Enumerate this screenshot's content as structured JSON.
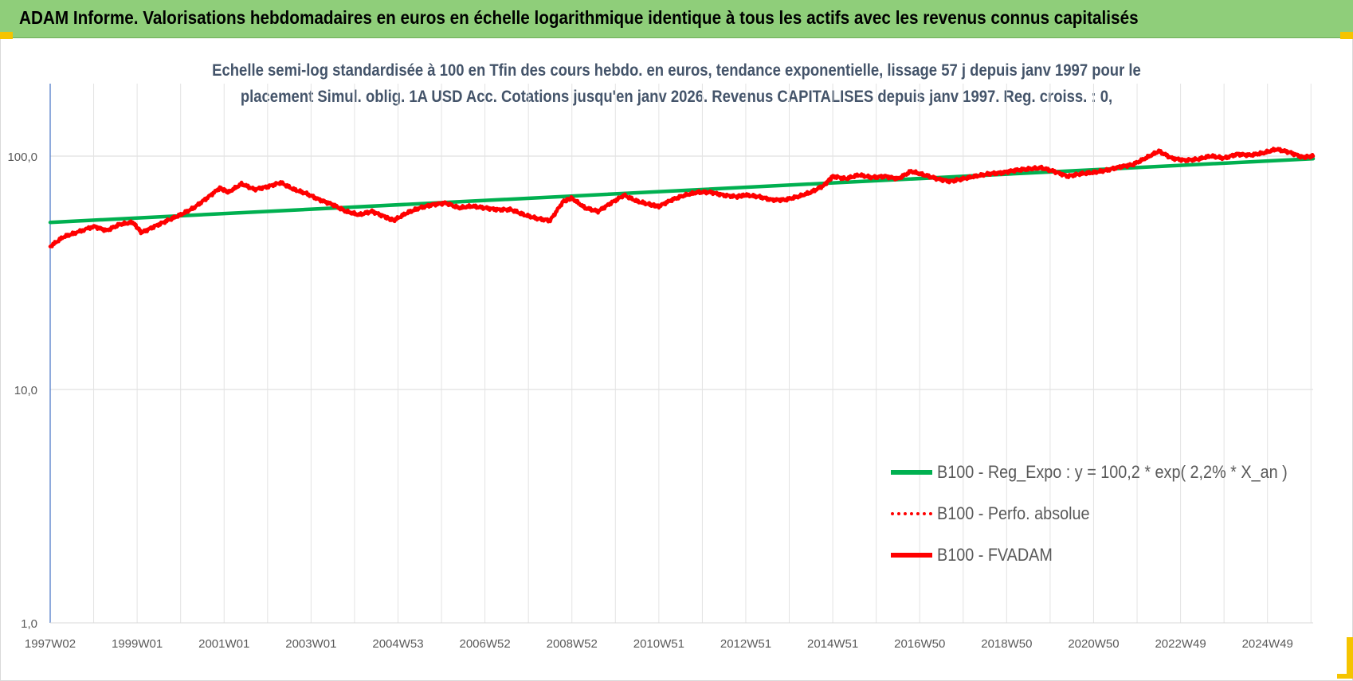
{
  "header": {
    "title": "ADAM Informe. Valorisations hebdomadaires en euros en échelle logarithmique identique à tous les actifs avec les revenus connus capitalisés"
  },
  "colors": {
    "header_bg": "#8fce7a",
    "corner_accent": "#f5c400",
    "trend_green": "#00b050",
    "series_red": "#ff0000",
    "subtitle": "#44546a"
  },
  "chart_data": {
    "type": "line",
    "scale": "log",
    "subtitle": [
      "Echelle semi-log standardisée à 100 en Tfin des cours hebdo. en euros, tendance exponentielle, lissage 57 j depuis janv 1997 pour le",
      "placement Simul. oblig. 1A USD Acc. Cotations jusqu'en janv 2026. Revenus CAPITALISES depuis janv 1997. Reg. croiss. : 0,"
    ],
    "ylim": [
      1,
      200
    ],
    "xlim": [
      1997.0,
      2026.05
    ],
    "y_ticks": [
      {
        "value": 1,
        "label": "1,0"
      },
      {
        "value": 10,
        "label": "10,0"
      },
      {
        "value": 100,
        "label": "100,0"
      }
    ],
    "x_ticks": [
      {
        "value": 1997.0,
        "label": "1997W02"
      },
      {
        "value": 1999.0,
        "label": "1999W01"
      },
      {
        "value": 2001.0,
        "label": "2001W01"
      },
      {
        "value": 2003.0,
        "label": "2003W01"
      },
      {
        "value": 2005.0,
        "label": "2004W53"
      },
      {
        "value": 2007.0,
        "label": "2006W52"
      },
      {
        "value": 2009.0,
        "label": "2008W52"
      },
      {
        "value": 2011.0,
        "label": "2010W51"
      },
      {
        "value": 2013.0,
        "label": "2012W51"
      },
      {
        "value": 2015.0,
        "label": "2014W51"
      },
      {
        "value": 2017.0,
        "label": "2016W50"
      },
      {
        "value": 2019.0,
        "label": "2018W50"
      },
      {
        "value": 2021.0,
        "label": "2020W50"
      },
      {
        "value": 2023.0,
        "label": "2022W49"
      },
      {
        "value": 2025.0,
        "label": "2024W49"
      }
    ],
    "grid": true,
    "legend_position": "bottom-right",
    "series": [
      {
        "name": "B100 - Reg_Expo : y = 100,2 * exp( 2,2% *  X_an )",
        "style": "solid-thick",
        "color": "#00b050",
        "x": [
          1997.0,
          2026.05
        ],
        "y": [
          52.0,
          97.5
        ]
      },
      {
        "name": "B100 - Perfo. absolue",
        "style": "dotted",
        "color": "#ff0000",
        "x": [],
        "y": []
      },
      {
        "name": "B100 - FVADAM",
        "style": "solid-thick",
        "color": "#ff0000",
        "x": [
          1997.0,
          1997.3,
          1997.6,
          1998.0,
          1998.3,
          1998.6,
          1998.9,
          1999.1,
          1999.4,
          1999.7,
          2000.0,
          2000.3,
          2000.6,
          2000.9,
          2001.1,
          2001.4,
          2001.7,
          2002.0,
          2002.3,
          2002.6,
          2002.9,
          2003.2,
          2003.5,
          2003.8,
          2004.1,
          2004.4,
          2004.7,
          2004.9,
          2005.2,
          2005.5,
          2005.8,
          2006.1,
          2006.4,
          2006.7,
          2007.0,
          2007.3,
          2007.6,
          2007.9,
          2008.2,
          2008.5,
          2008.8,
          2009.0,
          2009.3,
          2009.6,
          2009.9,
          2010.2,
          2010.5,
          2010.8,
          2011.0,
          2011.3,
          2011.6,
          2011.9,
          2012.2,
          2012.5,
          2012.8,
          2013.0,
          2013.3,
          2013.6,
          2013.9,
          2014.2,
          2014.5,
          2014.8,
          2015.0,
          2015.3,
          2015.6,
          2015.9,
          2016.2,
          2016.5,
          2016.8,
          2017.1,
          2017.4,
          2017.7,
          2018.0,
          2018.3,
          2018.6,
          2018.9,
          2019.2,
          2019.5,
          2019.8,
          2020.1,
          2020.4,
          2020.7,
          2021.0,
          2021.3,
          2021.6,
          2021.9,
          2022.2,
          2022.5,
          2022.8,
          2023.1,
          2023.4,
          2023.7,
          2024.0,
          2024.3,
          2024.6,
          2024.9,
          2025.2,
          2025.5,
          2025.8,
          2026.05
        ],
        "y": [
          41,
          45,
          47,
          50,
          48,
          51,
          52,
          47,
          50,
          53,
          56,
          60,
          66,
          73,
          70,
          76,
          72,
          74,
          77,
          72,
          69,
          65,
          62,
          58,
          56,
          58,
          55,
          53,
          57,
          60,
          62,
          63,
          60,
          61,
          60,
          59,
          59,
          56,
          54,
          53,
          64,
          66,
          60,
          58,
          63,
          68,
          64,
          62,
          61,
          65,
          68,
          70,
          70,
          68,
          67,
          68,
          67,
          65,
          65,
          67,
          70,
          75,
          82,
          80,
          83,
          81,
          82,
          80,
          86,
          83,
          80,
          78,
          80,
          82,
          84,
          85,
          87,
          88,
          89,
          86,
          82,
          84,
          85,
          87,
          90,
          92,
          98,
          105,
          98,
          96,
          97,
          100,
          98,
          102,
          101,
          103,
          107,
          104,
          99,
          100
        ]
      }
    ]
  }
}
